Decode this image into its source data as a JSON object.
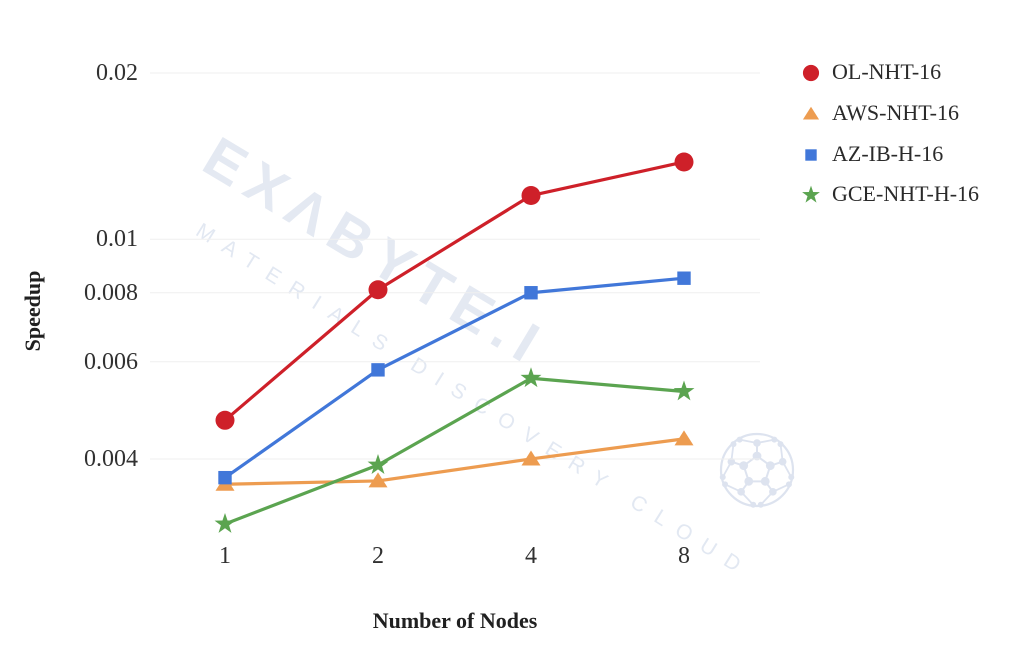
{
  "watermark": {
    "big_text": "EXΛBYTE.I",
    "small_text": "MATERIALS DISCOVERY CLOUD",
    "ball_icon": "fullerene-ball-icon",
    "color_big": "#e4e9f2",
    "color_small": "#e2e8f2"
  },
  "axes": {
    "y_title": "Speedup",
    "x_title": "Number of Nodes"
  },
  "legend": {
    "position": "right",
    "items": [
      {
        "label": "OL-NHT-16",
        "marker": "circle",
        "color": "#ce2029"
      },
      {
        "label": "AWS-NHT-16",
        "marker": "triangle",
        "color": "#ed9c50"
      },
      {
        "label": "AZ-IB-H-16",
        "marker": "square",
        "color": "#4177d9"
      },
      {
        "label": "GCE-NHT-H-16",
        "marker": "star",
        "color": "#5ba450"
      }
    ]
  },
  "chart_data": {
    "type": "line",
    "title": "",
    "xlabel": "Number of Nodes",
    "ylabel": "Speedup",
    "x": [
      1,
      2,
      4,
      8
    ],
    "x_scale": "log2",
    "y_scale": "log10",
    "ylim": [
      0.003,
      0.021
    ],
    "grid": true,
    "legend_position": "right",
    "xtick_labels": [
      "1",
      "2",
      "4",
      "8"
    ],
    "yticks": [
      0.02,
      0.01,
      0.008,
      0.006,
      0.004
    ],
    "ytick_labels": [
      "0.02",
      "0.01",
      "0.008",
      "0.006",
      "0.004"
    ],
    "series": [
      {
        "name": "OL-NHT-16",
        "marker": "circle",
        "color": "#ce2029",
        "values": [
          0.0047,
          0.0081,
          0.012,
          0.0138
        ]
      },
      {
        "name": "AWS-NHT-16",
        "marker": "triangle",
        "color": "#ed9c50",
        "values": [
          0.0036,
          0.00365,
          0.004,
          0.00435
        ]
      },
      {
        "name": "AZ-IB-H-16",
        "marker": "square",
        "color": "#4177d9",
        "values": [
          0.0037,
          0.0058,
          0.008,
          0.0085
        ]
      },
      {
        "name": "GCE-NHT-H-16",
        "marker": "star",
        "color": "#5ba450",
        "values": [
          0.00305,
          0.0039,
          0.0056,
          0.0053
        ]
      }
    ]
  }
}
